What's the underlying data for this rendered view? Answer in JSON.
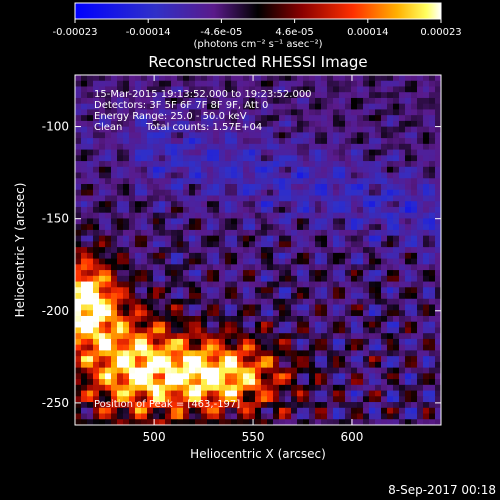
{
  "chart_data": {
    "type": "heatmap",
    "title": "Reconstructed RHESSI Image",
    "xlabel": "Heliocentric X (arcsec)",
    "ylabel": "Heliocentric Y (arcsec)",
    "xlim": [
      460,
      645
    ],
    "ylim": [
      -262,
      -72
    ],
    "x_ticks": [
      500,
      550,
      600
    ],
    "y_ticks": [
      -100,
      -150,
      -200,
      -250
    ],
    "colorbar": {
      "min": -0.00023,
      "max": 0.00023,
      "tick_labels": [
        "-0.00023",
        "-0.00014",
        "-4.6e-05",
        "4.6e-05",
        "0.00014",
        "0.00023"
      ],
      "units_label": "(photons cm⁻² s⁻¹ asec⁻²)",
      "colormap": [
        "#0000ff",
        "#2a2ad0",
        "#6a3ab0",
        "#4b0a5a",
        "#000000",
        "#7a0000",
        "#ff2000",
        "#ff9000",
        "#ffe000",
        "#ffffff"
      ]
    },
    "annotations": {
      "time_range": "15-Mar-2015 19:13:52.000 to 19:23:52.000",
      "detectors": "Detectors: 3F 5F 6F 7F 8F 9F, Att 0",
      "energy": "Energy Range: 25.0 - 50.0 keV",
      "method": "Clean",
      "counts": "Total counts: 1.57E+04",
      "peak": "Position of Peak = [463,-197]"
    },
    "peak_position": [
      463,
      -197
    ],
    "grid": false
  },
  "footer": {
    "timestamp": "8-Sep-2017 00:18"
  }
}
